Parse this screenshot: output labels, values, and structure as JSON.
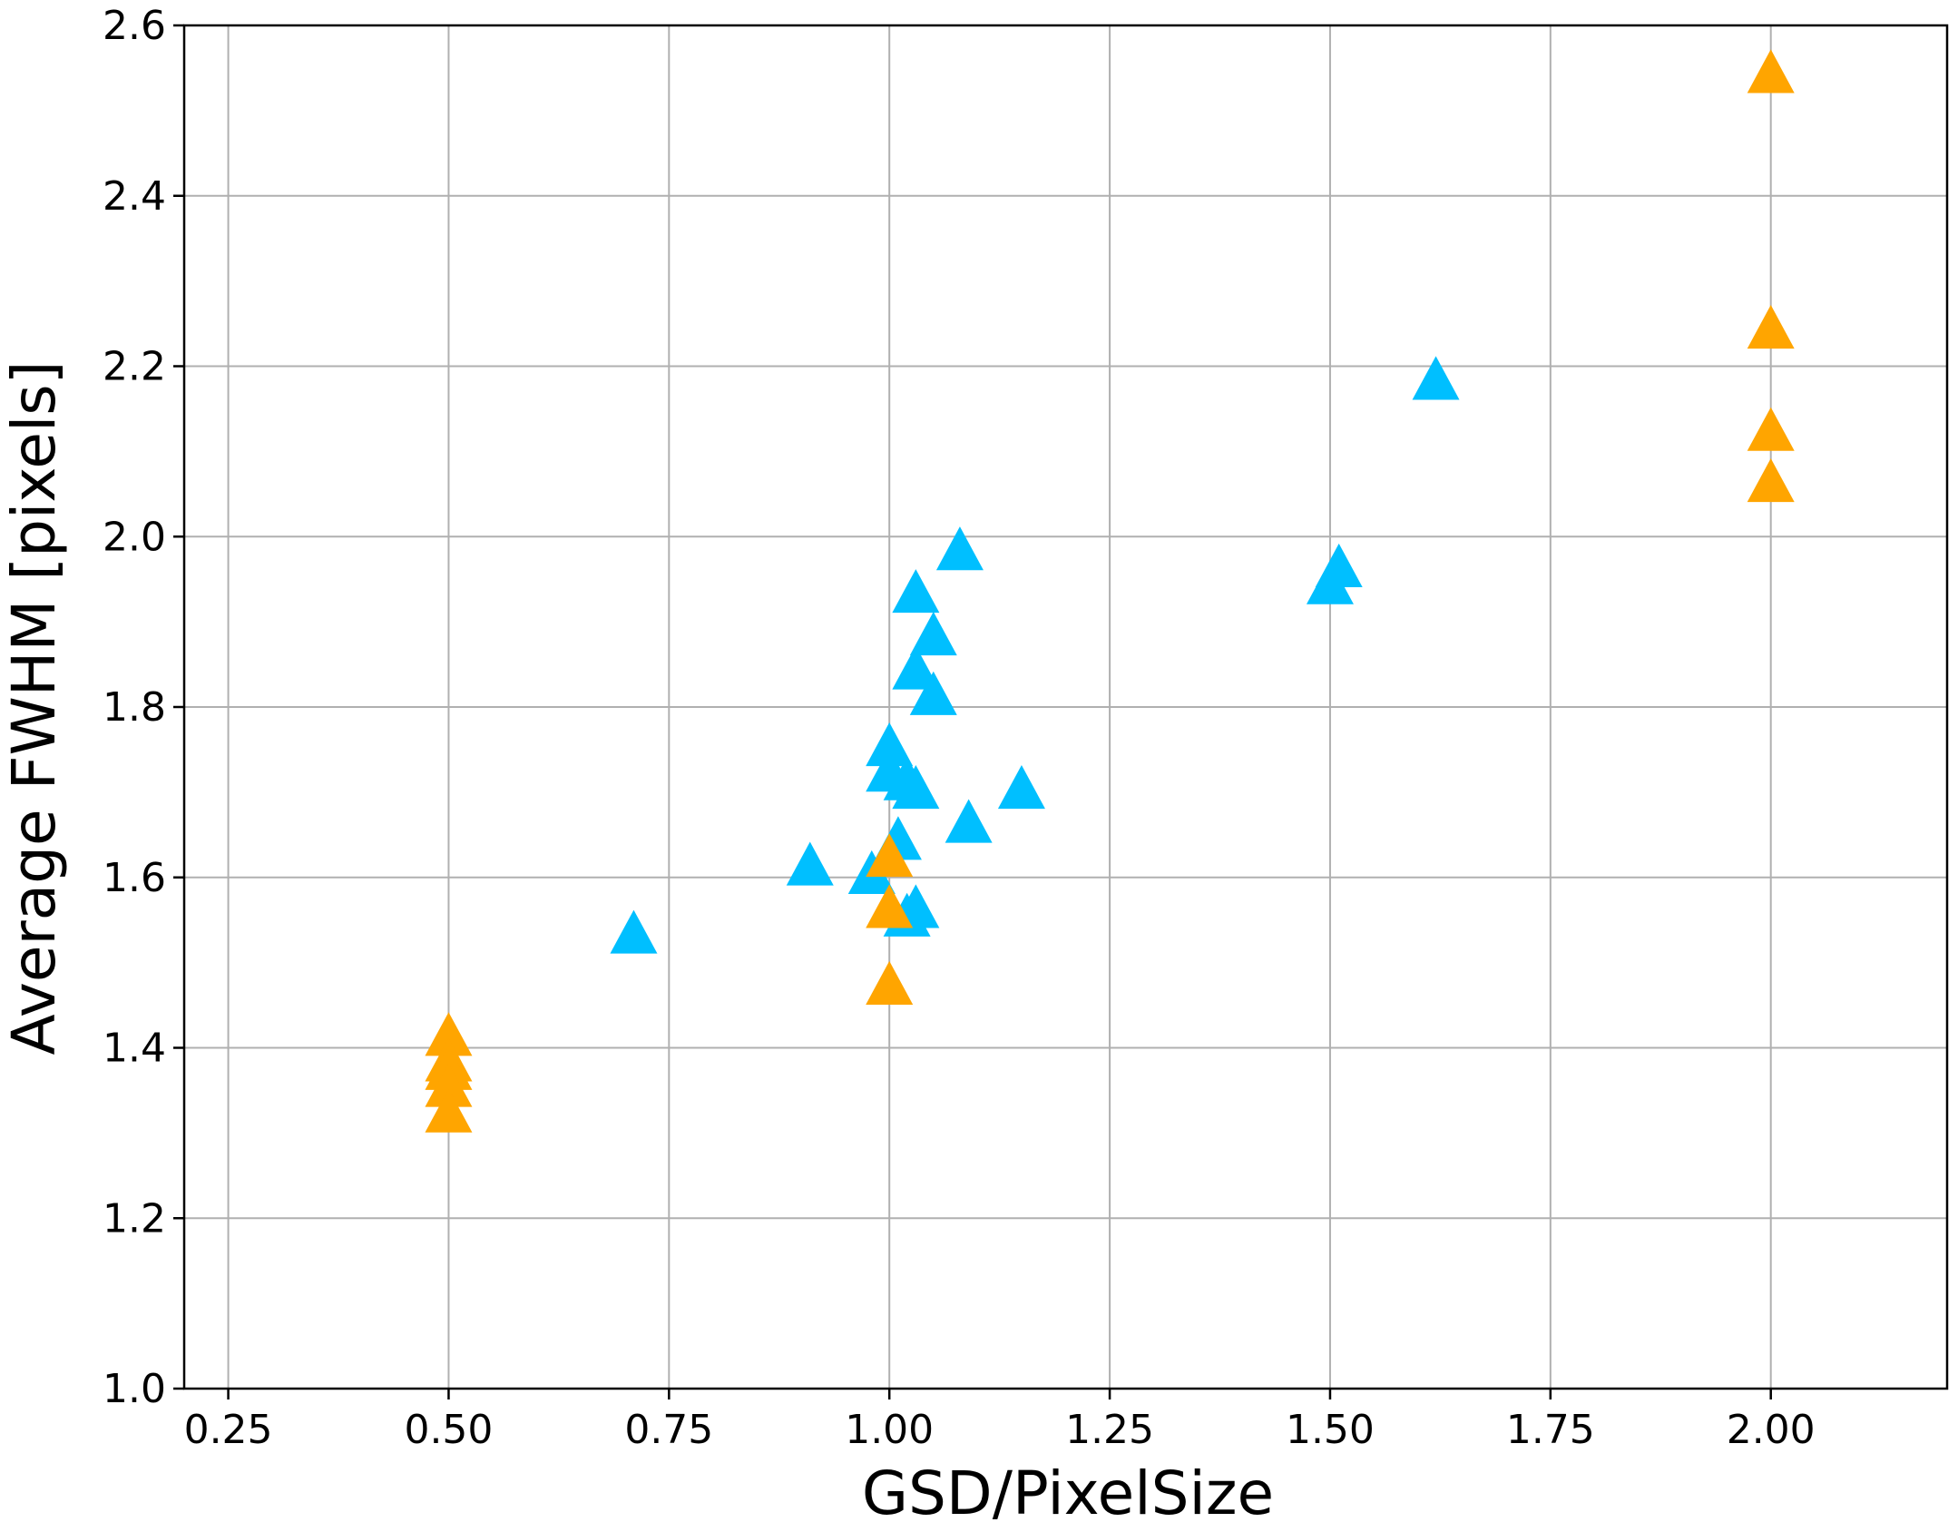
{
  "chart_data": {
    "type": "scatter",
    "title": "",
    "xlabel": "GSD/PixelSize",
    "ylabel": "Average FWHM [pixels]",
    "xlim": [
      0.2,
      2.2
    ],
    "ylim": [
      1.0,
      2.6
    ],
    "x_ticks": [
      "0.25",
      "0.50",
      "0.75",
      "1.00",
      "1.25",
      "1.50",
      "1.75",
      "2.00"
    ],
    "y_ticks": [
      "1.0",
      "1.2",
      "1.4",
      "1.6",
      "1.8",
      "2.0",
      "2.2",
      "2.4",
      "2.6"
    ],
    "grid": true,
    "marker": "triangle-up",
    "series": [
      {
        "color": "#00BFFF",
        "points": [
          {
            "x": 0.71,
            "y": 1.53
          },
          {
            "x": 0.91,
            "y": 1.61
          },
          {
            "x": 0.98,
            "y": 1.6
          },
          {
            "x": 1.0,
            "y": 1.75
          },
          {
            "x": 1.0,
            "y": 1.72
          },
          {
            "x": 1.01,
            "y": 1.64
          },
          {
            "x": 1.02,
            "y": 1.71
          },
          {
            "x": 1.02,
            "y": 1.55
          },
          {
            "x": 1.03,
            "y": 1.56
          },
          {
            "x": 1.03,
            "y": 1.84
          },
          {
            "x": 1.03,
            "y": 1.93
          },
          {
            "x": 1.05,
            "y": 1.88
          },
          {
            "x": 1.05,
            "y": 1.81
          },
          {
            "x": 1.03,
            "y": 1.7
          },
          {
            "x": 1.08,
            "y": 1.98
          },
          {
            "x": 1.09,
            "y": 1.66
          },
          {
            "x": 1.15,
            "y": 1.7
          },
          {
            "x": 1.5,
            "y": 1.94
          },
          {
            "x": 1.51,
            "y": 1.96
          },
          {
            "x": 1.62,
            "y": 2.18
          }
        ]
      },
      {
        "color": "#FFA500",
        "points": [
          {
            "x": 0.5,
            "y": 1.41
          },
          {
            "x": 0.5,
            "y": 1.38
          },
          {
            "x": 0.5,
            "y": 1.37
          },
          {
            "x": 0.5,
            "y": 1.35
          },
          {
            "x": 0.5,
            "y": 1.32
          },
          {
            "x": 1.0,
            "y": 1.62
          },
          {
            "x": 1.0,
            "y": 1.56
          },
          {
            "x": 1.0,
            "y": 1.47
          },
          {
            "x": 2.0,
            "y": 2.54
          },
          {
            "x": 2.0,
            "y": 2.24
          },
          {
            "x": 2.0,
            "y": 2.12
          },
          {
            "x": 2.0,
            "y": 2.06
          }
        ]
      }
    ]
  }
}
